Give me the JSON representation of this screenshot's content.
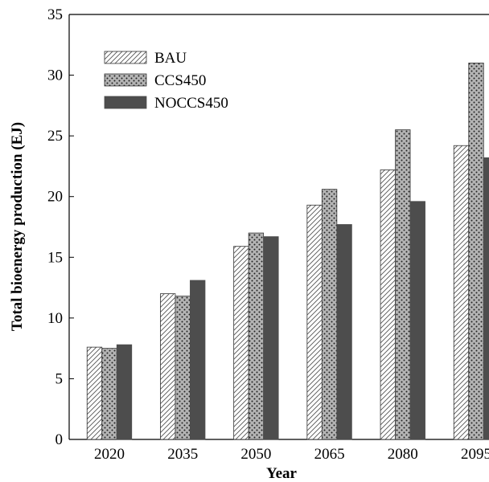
{
  "chart_data": {
    "type": "bar",
    "title": "",
    "xlabel": "Year",
    "ylabel": "Total bioenergy production (EJ)",
    "categories": [
      "2020",
      "2035",
      "2050",
      "2065",
      "2080",
      "2095"
    ],
    "ylim": [
      0,
      35
    ],
    "yticks": [
      "0",
      "5",
      "10",
      "15",
      "20",
      "25",
      "30",
      "35"
    ],
    "grid": false,
    "legend_position": "top-left",
    "series": [
      {
        "name": "BAU",
        "pattern": "diagonal-hatch",
        "color": "#ffffff",
        "values": [
          7.6,
          12.0,
          15.9,
          19.3,
          22.2,
          24.2
        ]
      },
      {
        "name": "CCS450",
        "pattern": "dotted",
        "color": "#b4b4b4",
        "values": [
          7.5,
          11.8,
          17.0,
          20.6,
          25.5,
          31.0
        ]
      },
      {
        "name": "NOCCS450",
        "pattern": "solid",
        "color": "#4d4d4d",
        "values": [
          7.8,
          13.1,
          16.7,
          17.7,
          19.6,
          23.2
        ]
      }
    ]
  }
}
